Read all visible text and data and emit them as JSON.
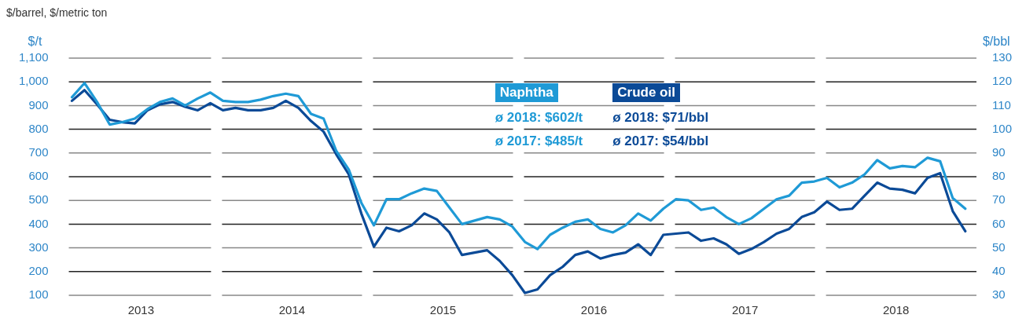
{
  "chart_data": {
    "type": "line",
    "title": "$/barrel, $/metric ton",
    "ylabel": "$/t",
    "y2label": "$/bbl",
    "x": [
      "2013-01",
      "2013-02",
      "2013-03",
      "2013-04",
      "2013-05",
      "2013-06",
      "2013-07",
      "2013-08",
      "2013-09",
      "2013-10",
      "2013-11",
      "2013-12",
      "2014-01",
      "2014-02",
      "2014-03",
      "2014-04",
      "2014-05",
      "2014-06",
      "2014-07",
      "2014-08",
      "2014-09",
      "2014-10",
      "2014-11",
      "2014-12",
      "2015-01",
      "2015-02",
      "2015-03",
      "2015-04",
      "2015-05",
      "2015-06",
      "2015-07",
      "2015-08",
      "2015-09",
      "2015-10",
      "2015-11",
      "2015-12",
      "2016-01",
      "2016-02",
      "2016-03",
      "2016-04",
      "2016-05",
      "2016-06",
      "2016-07",
      "2016-08",
      "2016-09",
      "2016-10",
      "2016-11",
      "2016-12",
      "2017-01",
      "2017-02",
      "2017-03",
      "2017-04",
      "2017-05",
      "2017-06",
      "2017-07",
      "2017-08",
      "2017-09",
      "2017-10",
      "2017-11",
      "2017-12",
      "2018-01",
      "2018-02",
      "2018-03",
      "2018-04",
      "2018-05",
      "2018-06",
      "2018-07",
      "2018-08",
      "2018-09",
      "2018-10",
      "2018-11",
      "2018-12"
    ],
    "series": [
      {
        "name": "Naphtha",
        "color": "#1f9ad6",
        "values": [
          935,
          995,
          915,
          820,
          830,
          845,
          885,
          915,
          930,
          900,
          930,
          955,
          920,
          915,
          915,
          925,
          940,
          950,
          940,
          865,
          845,
          710,
          630,
          490,
          395,
          505,
          505,
          530,
          550,
          540,
          470,
          400,
          415,
          430,
          420,
          390,
          325,
          295,
          355,
          385,
          410,
          420,
          380,
          365,
          395,
          445,
          415,
          465,
          505,
          500,
          460,
          470,
          430,
          400,
          425,
          465,
          505,
          520,
          575,
          580,
          595,
          555,
          575,
          610,
          670,
          635,
          645,
          640,
          680,
          665,
          510,
          465
        ]
      },
      {
        "name": "Crude oil",
        "color": "#0b4a97",
        "axis": "y2",
        "values": [
          112,
          116.5,
          110.5,
          104,
          103,
          102.5,
          108,
          110.5,
          111.5,
          109.5,
          108,
          111,
          108,
          109,
          108,
          108,
          109,
          112,
          109,
          103.5,
          99,
          89.5,
          81,
          64.5,
          50.5,
          58.5,
          57,
          59.5,
          64.5,
          62,
          56.5,
          47,
          48,
          49,
          44.5,
          38.5,
          31,
          32.5,
          38.5,
          42,
          47,
          48.5,
          45.5,
          47,
          48,
          51.5,
          47,
          55.5,
          56,
          56.5,
          53,
          54,
          51.5,
          47.5,
          49.5,
          52.5,
          56,
          58,
          63,
          65,
          69.5,
          66,
          66.5,
          72,
          77.5,
          75,
          74.5,
          73,
          79.5,
          81.5,
          65.5,
          57
        ]
      }
    ],
    "annotations": [
      "ø 2018: $602/t",
      "ø 2017: $485/t",
      "ø 2018: $71/bbl",
      "ø 2017: $54/bbl"
    ],
    "xlim": [
      "2012-12-24",
      "2018-12-28"
    ],
    "xticks": [
      {
        "value": "2013-06-16",
        "label": "2013"
      },
      {
        "value": "2014-06-16",
        "label": "2014"
      },
      {
        "value": "2015-06-16",
        "label": "2015"
      },
      {
        "value": "2016-06-16",
        "label": "2016"
      },
      {
        "value": "2017-06-16",
        "label": "2017"
      },
      {
        "value": "2018-06-16",
        "label": "2018"
      }
    ],
    "ylim": [
      100,
      1100
    ],
    "yticks": [
      100,
      200,
      300,
      400,
      500,
      600,
      700,
      800,
      900,
      {
        "value": 1000,
        "label": "1,000"
      },
      {
        "value": 1100,
        "label": "1,100"
      }
    ],
    "y2lim": [
      30,
      130
    ],
    "y2ticks": [
      30,
      40,
      50,
      60,
      70,
      80,
      90,
      100,
      110,
      120,
      130
    ],
    "grid": "y",
    "legend": "top",
    "marker": "none",
    "line_style": "solid"
  }
}
